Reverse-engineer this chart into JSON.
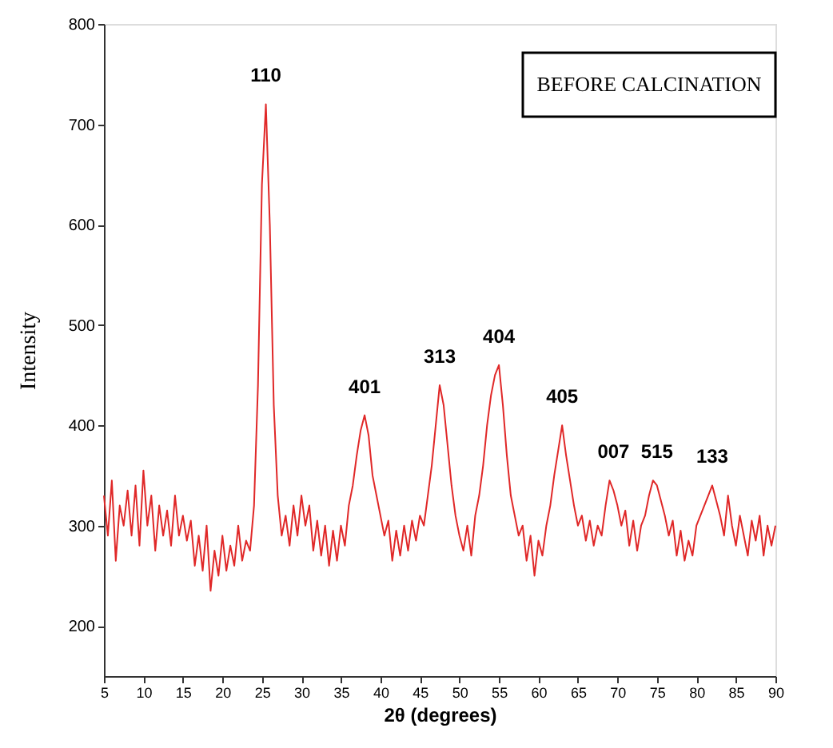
{
  "chart_data": {
    "type": "line",
    "xlabel": "2θ (degrees)",
    "ylabel": "Intensity",
    "xlim": [
      5,
      90
    ],
    "xticks": [
      5,
      10,
      15,
      20,
      25,
      30,
      35,
      40,
      45,
      50,
      55,
      60,
      65,
      70,
      75,
      80,
      85,
      90
    ],
    "ylim": [
      150,
      800
    ],
    "yticks": [
      200,
      300,
      400,
      500,
      600,
      700,
      800
    ],
    "grid": false,
    "marker": "none",
    "line_style": "solid",
    "x": [
      5,
      5.5,
      6,
      6.5,
      7,
      7.5,
      8,
      8.5,
      9,
      9.5,
      10,
      10.5,
      11,
      11.5,
      12,
      12.5,
      13,
      13.5,
      14,
      14.5,
      15,
      15.5,
      16,
      16.5,
      17,
      17.5,
      18,
      18.5,
      19,
      19.5,
      20,
      20.5,
      21,
      21.5,
      22,
      22.5,
      23,
      23.5,
      24,
      24.5,
      25,
      25.5,
      26,
      26.5,
      27,
      27.5,
      28,
      28.5,
      29,
      29.5,
      30,
      30.5,
      31,
      31.5,
      32,
      32.5,
      33,
      33.5,
      34,
      34.5,
      35,
      35.5,
      36,
      36.5,
      37,
      37.5,
      38,
      38.5,
      39,
      39.5,
      40,
      40.5,
      41,
      41.5,
      42,
      42.5,
      43,
      43.5,
      44,
      44.5,
      45,
      45.5,
      46,
      46.5,
      47,
      47.5,
      48,
      48.5,
      49,
      49.5,
      50,
      50.5,
      51,
      51.5,
      52,
      52.5,
      53,
      53.5,
      54,
      54.5,
      55,
      55.5,
      56,
      56.5,
      57,
      57.5,
      58,
      58.5,
      59,
      59.5,
      60,
      60.5,
      61,
      61.5,
      62,
      62.5,
      63,
      63.5,
      64,
      64.5,
      65,
      65.5,
      66,
      66.5,
      67,
      67.5,
      68,
      68.5,
      69,
      69.5,
      70,
      70.5,
      71,
      71.5,
      72,
      72.5,
      73,
      73.5,
      74,
      74.5,
      75,
      75.5,
      76,
      76.5,
      77,
      77.5,
      78,
      78.5,
      79,
      79.5,
      80,
      80.5,
      81,
      81.5,
      82,
      82.5,
      83,
      83.5,
      84,
      84.5,
      85,
      85.5,
      86,
      86.5,
      87,
      87.5,
      88,
      88.5,
      89,
      89.5,
      90
    ],
    "series": [
      {
        "color": "#e02828",
        "values": [
          330,
          290,
          345,
          265,
          320,
          300,
          335,
          290,
          340,
          280,
          355,
          300,
          330,
          275,
          320,
          290,
          315,
          280,
          330,
          290,
          310,
          285,
          305,
          260,
          290,
          255,
          300,
          235,
          275,
          250,
          290,
          255,
          280,
          260,
          300,
          265,
          285,
          275,
          320,
          440,
          640,
          720,
          600,
          420,
          330,
          290,
          310,
          280,
          320,
          290,
          330,
          300,
          320,
          275,
          305,
          270,
          300,
          260,
          295,
          265,
          300,
          280,
          320,
          340,
          370,
          395,
          410,
          390,
          350,
          330,
          310,
          290,
          305,
          265,
          295,
          270,
          300,
          275,
          305,
          285,
          310,
          300,
          330,
          360,
          400,
          440,
          420,
          380,
          340,
          310,
          290,
          275,
          300,
          270,
          310,
          330,
          360,
          400,
          430,
          450,
          460,
          420,
          370,
          330,
          310,
          290,
          300,
          265,
          290,
          250,
          285,
          270,
          300,
          320,
          350,
          375,
          400,
          370,
          345,
          320,
          300,
          310,
          285,
          305,
          280,
          300,
          290,
          320,
          345,
          335,
          320,
          300,
          315,
          280,
          305,
          275,
          300,
          310,
          330,
          345,
          340,
          325,
          310,
          290,
          305,
          270,
          295,
          265,
          285,
          270,
          300,
          310,
          320,
          330,
          340,
          325,
          310,
          290,
          330,
          300,
          280,
          310,
          290,
          270,
          305,
          285,
          310,
          270,
          300,
          280,
          300
        ]
      }
    ],
    "annotations": [
      {
        "text": "110",
        "x": 25.5,
        "y": 720
      },
      {
        "text": "401",
        "x": 38,
        "y": 410
      },
      {
        "text": "313",
        "x": 47.5,
        "y": 440
      },
      {
        "text": "404",
        "x": 55,
        "y": 460
      },
      {
        "text": "405",
        "x": 63,
        "y": 400
      },
      {
        "text": "007",
        "x": 69.5,
        "y": 345
      },
      {
        "text": "515",
        "x": 75,
        "y": 345
      },
      {
        "text": "133",
        "x": 82,
        "y": 340
      },
      "BEFORE CALCINATION"
    ]
  }
}
